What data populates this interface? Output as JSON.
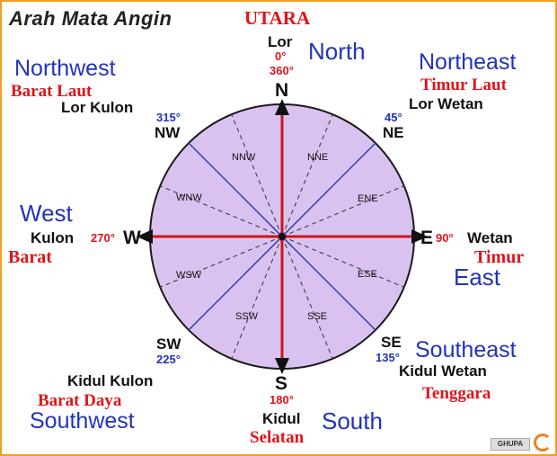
{
  "title": "Arah Mata Angin",
  "north": {
    "indonesian": "UTARA",
    "javanese": "Lor",
    "english": "North",
    "deg_a": "0°",
    "deg_b": "360°",
    "letter": "N"
  },
  "northwest": {
    "english": "Northwest",
    "indonesian": "Barat Laut",
    "javanese": "Lor Kulon",
    "deg": "315°",
    "letter": "NW"
  },
  "northeast": {
    "english": "Northeast",
    "indonesian": "Timur Laut",
    "javanese": "Lor Wetan",
    "deg": "45°",
    "letter": "NE"
  },
  "west": {
    "english": "West",
    "javanese": "Kulon",
    "indonesian": "Barat",
    "deg": "270°",
    "letter": "W"
  },
  "east": {
    "english": "East",
    "javanese": "Wetan",
    "indonesian": "Timur",
    "deg": "90°",
    "letter": "E"
  },
  "southwest": {
    "english": "Southwest",
    "indonesian": "Barat Daya",
    "javanese": "Kidul Kulon",
    "deg": "225°",
    "letter": "SW"
  },
  "southeast": {
    "english": "Southeast",
    "indonesian": "Tenggara",
    "javanese": "Kidul Wetan",
    "deg": "135°",
    "letter": "SE"
  },
  "south": {
    "english": "South",
    "javanese": "Kidul",
    "indonesian": "Selatan",
    "deg": "180°",
    "letter": "S"
  },
  "inner_labels": {
    "nnw": "NNW",
    "nne": "NNE",
    "wnw": "WNW",
    "ene": "ENE",
    "wsw": "WSW",
    "ese": "ESE",
    "ssw": "SSW",
    "sse": "SSE"
  },
  "watermark_logo": "GHUPA",
  "colors": {
    "circle_fill": "#d9c2f0",
    "main_axes": "#d0141b",
    "diagonals": "#2e3fa8",
    "dashed": "#333333",
    "english_text": "#2233bb",
    "indonesian_text": "#e0141b",
    "frame": "#f0a020"
  }
}
